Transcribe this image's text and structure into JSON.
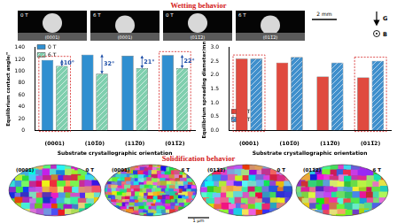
{
  "header": {
    "title": "Wetting behavior"
  },
  "droplets": {
    "panels": [
      {
        "field": "0 T",
        "orientation": "(0001)"
      },
      {
        "field": "6 T",
        "orientation": "(0001)"
      },
      {
        "field": "0 T",
        "orientation": "(011̅2)"
      },
      {
        "field": "6 T",
        "orientation": "(011̅2)"
      }
    ],
    "scale_bar": "2 mm",
    "gravity": "G",
    "field_direction": "B"
  },
  "chart_data": [
    {
      "type": "bar",
      "y_label": "Equilibrium contact angle/°",
      "x_label": "Substrate crystallographic orientation",
      "categories": [
        "(0001)",
        "(101̅0)",
        "(112̅0)",
        "(011̅2)"
      ],
      "series": [
        {
          "name": "0 T",
          "color": "#2f8fd0",
          "values": [
            119,
            128,
            126,
            127
          ]
        },
        {
          "name": "6 T",
          "color": "#7fcfae",
          "values": [
            109,
            96,
            105,
            105
          ]
        }
      ],
      "ylim": [
        0,
        140
      ],
      "yticks": [
        0,
        20,
        40,
        60,
        80,
        100,
        120,
        140
      ],
      "grid": false,
      "legend": "upper left",
      "annotations": [
        {
          "category": "(0001)",
          "text": "10°"
        },
        {
          "category": "(101̅0)",
          "text": "32°"
        },
        {
          "category": "(112̅0)",
          "text": "21°"
        },
        {
          "category": "(011̅2)",
          "text": "22°"
        }
      ]
    },
    {
      "type": "bar",
      "y_label": "Equilibrium spreading diameter/mm",
      "x_label": "Substrate crystallographic orientation",
      "categories": [
        "(0001)",
        "(101̅0)",
        "(112̅0)",
        "(011̅2)"
      ],
      "series": [
        {
          "name": "0 T",
          "color": "#e04a3f",
          "values": [
            2.6,
            2.45,
            1.95,
            1.92
          ]
        },
        {
          "name": "6 T",
          "color": "#3f8fcc",
          "values": [
            2.6,
            2.65,
            2.45,
            2.52
          ]
        }
      ],
      "ylim": [
        0,
        3
      ],
      "yticks": [
        {
          "value": 0,
          "label": "0.0"
        },
        0.5,
        {
          "value": 1,
          "label": "1.0"
        },
        1.5,
        {
          "value": 2,
          "label": "2.0"
        },
        2.5,
        {
          "value": 3,
          "label": "3.0"
        }
      ],
      "grid": false,
      "legend": "upper right"
    }
  ],
  "solidification": {
    "title": "Solidification behavior",
    "panels": [
      {
        "orientation": "(0001)",
        "field": "0 T"
      },
      {
        "orientation": "(0001)",
        "field": "6 T"
      },
      {
        "orientation": "(011̅2)",
        "field": "0 T"
      },
      {
        "orientation": "(011̅2)",
        "field": "6 T"
      }
    ],
    "scale_bar": "1 μm"
  }
}
